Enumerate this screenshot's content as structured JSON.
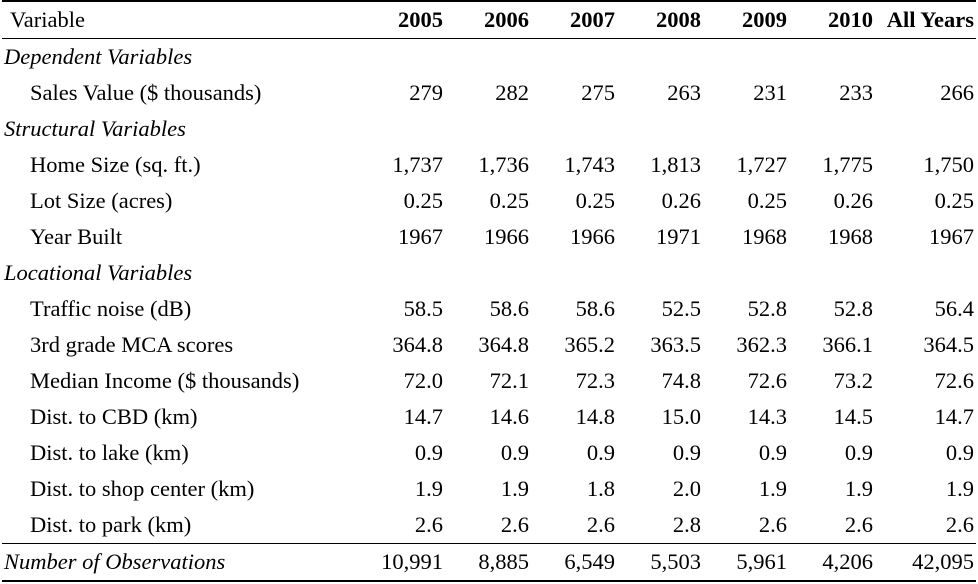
{
  "table": {
    "columns": [
      "Variable",
      "2005",
      "2006",
      "2007",
      "2008",
      "2009",
      "2010",
      "All Years"
    ],
    "groups": [
      {
        "title": "Dependent Variables",
        "rows": [
          {
            "label": "Sales Value ($ thousands)",
            "values": [
              "279",
              "282",
              "275",
              "263",
              "231",
              "233",
              "266"
            ]
          }
        ]
      },
      {
        "title": "Structural Variables",
        "rows": [
          {
            "label": "Home Size (sq. ft.)",
            "values": [
              "1,737",
              "1,736",
              "1,743",
              "1,813",
              "1,727",
              "1,775",
              "1,750"
            ]
          },
          {
            "label": "Lot Size (acres)",
            "values": [
              "0.25",
              "0.25",
              "0.25",
              "0.26",
              "0.25",
              "0.26",
              "0.25"
            ]
          },
          {
            "label": "Year Built",
            "values": [
              "1967",
              "1966",
              "1966",
              "1971",
              "1968",
              "1968",
              "1967"
            ]
          }
        ]
      },
      {
        "title": "Locational Variables",
        "rows": [
          {
            "label": "Traffic noise (dB)",
            "values": [
              "58.5",
              "58.6",
              "58.6",
              "52.5",
              "52.8",
              "52.8",
              "56.4"
            ]
          },
          {
            "label": "3rd grade MCA scores",
            "values": [
              "364.8",
              "364.8",
              "365.2",
              "363.5",
              "362.3",
              "366.1",
              "364.5"
            ]
          },
          {
            "label": "Median Income ($ thousands)",
            "values": [
              "72.0",
              "72.1",
              "72.3",
              "74.8",
              "72.6",
              "73.2",
              "72.6"
            ]
          },
          {
            "label": "Dist. to CBD (km)",
            "values": [
              "14.7",
              "14.6",
              "14.8",
              "15.0",
              "14.3",
              "14.5",
              "14.7"
            ]
          },
          {
            "label": "Dist. to lake (km)",
            "values": [
              "0.9",
              "0.9",
              "0.9",
              "0.9",
              "0.9",
              "0.9",
              "0.9"
            ]
          },
          {
            "label": "Dist. to shop center (km)",
            "values": [
              "1.9",
              "1.9",
              "1.8",
              "2.0",
              "1.9",
              "1.9",
              "1.9"
            ]
          },
          {
            "label": "Dist. to park (km)",
            "values": [
              "2.6",
              "2.6",
              "2.6",
              "2.8",
              "2.6",
              "2.6",
              "2.6"
            ]
          }
        ]
      }
    ],
    "observations": {
      "label": "Number of Observations",
      "values": [
        "10,991",
        "8,885",
        "6,549",
        "5,503",
        "5,961",
        "4,206",
        "42,095"
      ]
    }
  }
}
